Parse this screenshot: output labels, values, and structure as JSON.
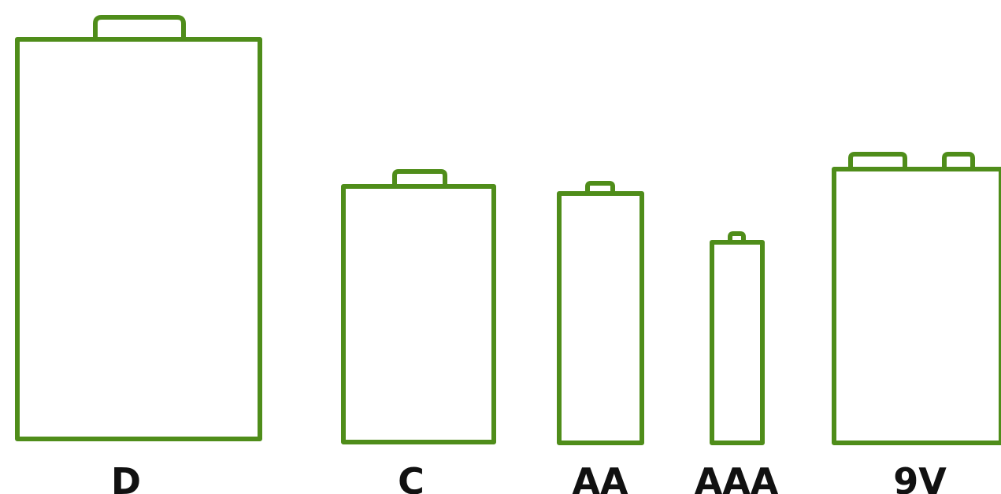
{
  "colors": {
    "outline": "#4f8d1a",
    "label": "#111111",
    "background": "#ffffff"
  },
  "batteries": [
    {
      "id": "d",
      "label": "D"
    },
    {
      "id": "c",
      "label": "C"
    },
    {
      "id": "aa",
      "label": "AA"
    },
    {
      "id": "aaa",
      "label": "AAA"
    },
    {
      "id": "nine-volt",
      "label": "9V"
    }
  ]
}
